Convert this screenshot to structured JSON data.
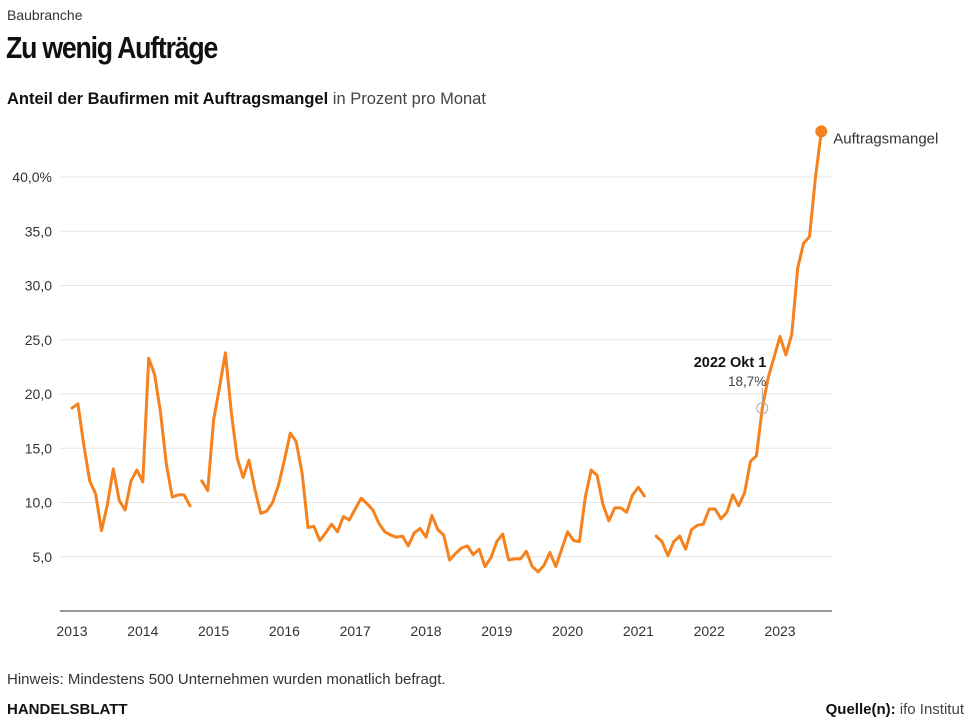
{
  "header": {
    "kicker": "Baubranche",
    "title": "Zu wenig Aufträge",
    "subtitle_bold": "Anteil der Baufirmen mit Auftragsmangel",
    "subtitle_light": " in Prozent pro Monat"
  },
  "footer": {
    "note": "Hinweis: Mindestens 500 Unternehmen wurden monatlich befragt.",
    "brand": "HANDELSBLATT",
    "source_label": "Quelle(n):",
    "source_value": " ifo Institut"
  },
  "colors": {
    "line": "#F5821F",
    "grid": "#e6e6e6",
    "axis": "#333333"
  },
  "chart_data": {
    "type": "line",
    "title": "Anteil der Baufirmen mit Auftragsmangel",
    "ylabel": "in Prozent pro Monat",
    "xlabel": "",
    "ylim": [
      0,
      45
    ],
    "yticks": [
      5,
      10,
      15,
      20,
      25,
      30,
      35,
      40
    ],
    "ytick_labels": [
      "5,0",
      "10,0",
      "15,0",
      "20,0",
      "25,0",
      "30,0",
      "35,0",
      "40,0%"
    ],
    "xticks": [
      "2013",
      "2014",
      "2015",
      "2016",
      "2017",
      "2018",
      "2019",
      "2020",
      "2021",
      "2022",
      "2023"
    ],
    "grid": true,
    "start": "2013-01",
    "frequency": "monthly",
    "series": [
      {
        "name": "Auftragsmangel",
        "values": [
          18.7,
          19.1,
          15.3,
          12.0,
          10.8,
          7.4,
          9.8,
          13.1,
          10.2,
          9.3,
          12.0,
          13.0,
          11.9,
          23.3,
          21.8,
          18.3,
          13.5,
          10.5,
          10.7,
          10.7,
          9.7,
          null,
          12.0,
          11.1,
          17.6,
          20.6,
          23.8,
          18.3,
          14.1,
          12.3,
          13.9,
          11.2,
          9.0,
          9.2,
          10.0,
          11.6,
          13.9,
          16.4,
          15.6,
          12.7,
          7.7,
          7.8,
          6.5,
          7.2,
          8.0,
          7.3,
          8.7,
          8.4,
          9.4,
          10.4,
          9.9,
          9.3,
          8.1,
          7.3,
          7.0,
          6.8,
          6.9,
          6.0,
          7.2,
          7.6,
          6.8,
          8.8,
          7.5,
          7.0,
          4.7,
          5.3,
          5.8,
          6.0,
          5.2,
          5.7,
          4.1,
          4.9,
          6.4,
          7.1,
          4.7,
          4.8,
          4.8,
          5.5,
          4.1,
          3.6,
          4.2,
          5.4,
          4.1,
          5.7,
          7.3,
          6.5,
          6.4,
          10.5,
          13.0,
          12.5,
          9.8,
          8.3,
          9.5,
          9.5,
          9.1,
          10.7,
          11.4,
          10.6,
          null,
          6.9,
          6.4,
          5.1,
          6.4,
          6.9,
          5.7,
          7.5,
          7.9,
          8.0,
          9.4,
          9.4,
          8.5,
          9.1,
          10.7,
          9.7,
          10.9,
          13.8,
          14.3,
          18.7,
          21.5,
          23.4,
          25.3,
          23.6,
          25.5,
          31.6,
          33.9,
          34.5,
          39.9,
          44.2
        ]
      }
    ],
    "annotation": {
      "label": "2022 Okt 1",
      "value_label": "18,7%",
      "index": 117,
      "value": 18.7
    },
    "end_label": "Auftragsmangel"
  }
}
